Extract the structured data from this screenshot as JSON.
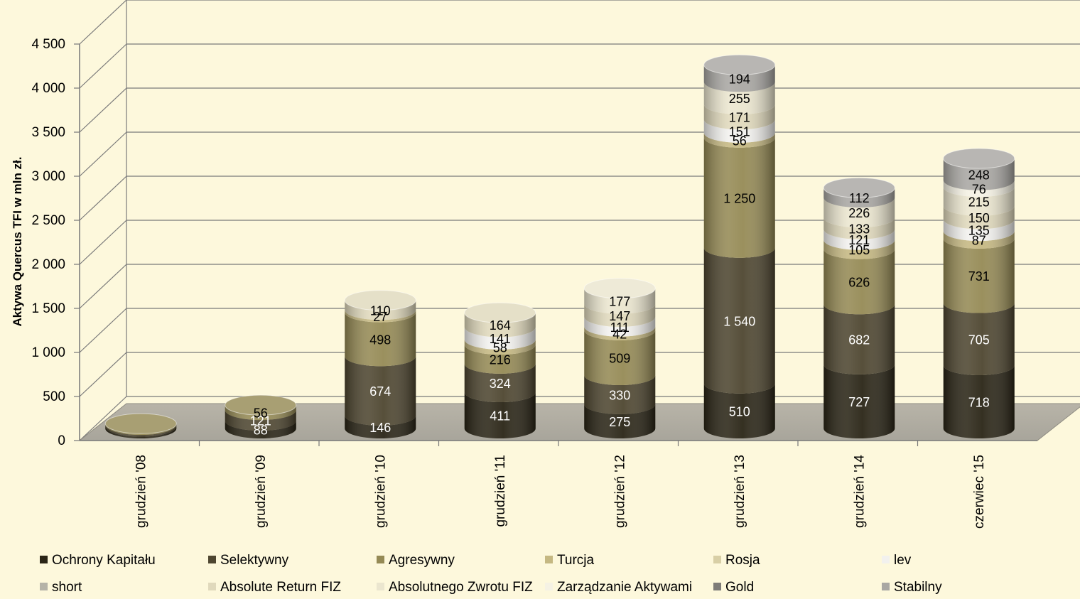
{
  "chart_data": {
    "type": "bar",
    "stacked": true,
    "style": "3d-cylinder",
    "ylabel": "Aktywa Quercus TFI w mln zł.",
    "xlabel": "",
    "title": "",
    "ylim": [
      0,
      4500
    ],
    "yticks": [
      0,
      500,
      1000,
      1500,
      2000,
      2500,
      3000,
      3500,
      4000,
      4500
    ],
    "ytick_labels": [
      "0",
      "500",
      "1 000",
      "1 500",
      "2 000",
      "2 500",
      "3 000",
      "3 500",
      "4 000",
      "4 500"
    ],
    "grid": true,
    "legend_position": "bottom",
    "categories": [
      "grudzień '08",
      "grudzień '09",
      "grudzień '10",
      "grudzień '11",
      "grudzień '12",
      "grudzień '13",
      "grudzień '14",
      "czerwiec '15"
    ],
    "series": [
      {
        "name": "Ochrony Kapitału",
        "color": "#2a2516",
        "label_color": "#ffffff",
        "values": [
          20,
          88,
          146,
          411,
          275,
          510,
          727,
          718
        ],
        "labels": [
          "",
          "88",
          "146",
          "411",
          "275",
          "510",
          "727",
          "718"
        ]
      },
      {
        "name": "Selektywny",
        "color": "#4e4630",
        "label_color": "#ffffff",
        "values": [
          20,
          121,
          674,
          324,
          330,
          1540,
          682,
          705
        ],
        "labels": [
          "",
          "121",
          "674",
          "324",
          "330",
          "1 540",
          "682",
          "705"
        ]
      },
      {
        "name": "Agresywny",
        "color": "#958a55",
        "label_color": "#000000",
        "values": [
          15,
          56,
          498,
          216,
          509,
          1250,
          626,
          731
        ],
        "labels": [
          "",
          "56",
          "498",
          "216",
          "509",
          "1 250",
          "626",
          "731"
        ]
      },
      {
        "name": "Turcja",
        "color": "#c5b882",
        "label_color": "#000000",
        "values": [
          0,
          0,
          27,
          58,
          42,
          56,
          105,
          87
        ],
        "labels": [
          "",
          "",
          "27",
          "58",
          "42",
          "56",
          "105",
          "87"
        ]
      },
      {
        "name": "Rosja",
        "color": "#d8cfa6",
        "label_color": "#000000",
        "values": [
          0,
          0,
          0,
          0,
          0,
          0,
          0,
          0
        ],
        "labels": [
          "",
          "",
          "",
          "",
          "",
          "",
          "",
          ""
        ]
      },
      {
        "name": "lev",
        "color": "#f2f1ee",
        "label_color": "#000000",
        "values": [
          0,
          0,
          0,
          141,
          111,
          151,
          121,
          135
        ],
        "labels": [
          "",
          "",
          "",
          "141",
          "111",
          "151",
          "121",
          "135"
        ]
      },
      {
        "name": "short",
        "color": "#b5b3a8",
        "label_color": "#000000",
        "values": [
          0,
          0,
          0,
          0,
          0,
          0,
          0,
          0
        ],
        "labels": [
          "",
          "",
          "",
          "",
          "",
          "",
          "",
          ""
        ]
      },
      {
        "name": "Absolute Return FIZ",
        "color": "#e0d9bc",
        "label_color": "#000000",
        "values": [
          0,
          0,
          110,
          164,
          147,
          171,
          133,
          150
        ],
        "labels": [
          "",
          "",
          "110",
          "164",
          "147",
          "171",
          "133",
          "150"
        ]
      },
      {
        "name": "Absolutnego Zwrotu FIZ",
        "color": "#ebe6cf",
        "label_color": "#000000",
        "values": [
          0,
          0,
          0,
          0,
          177,
          255,
          226,
          215
        ],
        "labels": [
          "",
          "",
          "",
          "",
          "177",
          "255",
          "226",
          "215"
        ]
      },
      {
        "name": "Zarządzanie Aktywami",
        "color": "#f5f2e4",
        "label_color": "#000000",
        "values": [
          0,
          0,
          0,
          0,
          0,
          0,
          0,
          76
        ],
        "labels": [
          "",
          "",
          "",
          "",
          "",
          "",
          "",
          "76"
        ]
      },
      {
        "name": "Gold",
        "color": "#7e7c78",
        "label_color": "#000000",
        "values": [
          0,
          0,
          0,
          0,
          0,
          0,
          0,
          0
        ],
        "labels": [
          "",
          "",
          "",
          "",
          "",
          "",
          "",
          ""
        ]
      },
      {
        "name": "Stabilny",
        "color": "#a9a7a3",
        "label_color": "#000000",
        "values": [
          0,
          0,
          0,
          0,
          0,
          194,
          112,
          248
        ],
        "labels": [
          "",
          "",
          "",
          "",
          "",
          "194",
          "112",
          "248"
        ]
      }
    ]
  }
}
